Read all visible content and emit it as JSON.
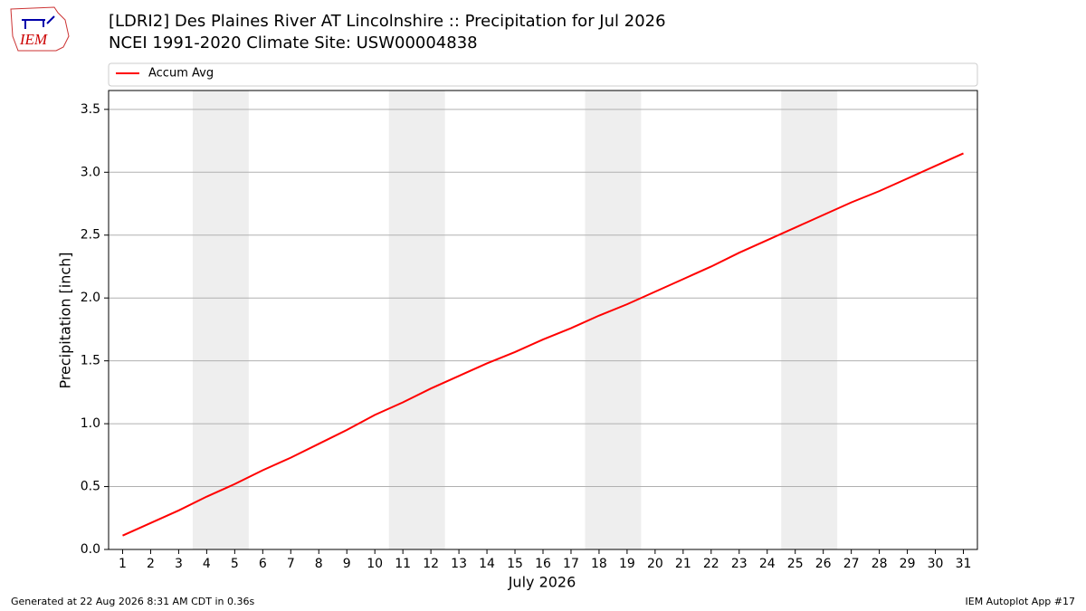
{
  "logo": "IEM",
  "footer_left": "Generated at 22 Aug 2026 8:31 AM CDT in 0.36s",
  "footer_right": "IEM Autoplot App #17",
  "chart_data": {
    "type": "line",
    "title": "[LDRI2] Des Plaines River  AT Lincolnshire :: Precipitation for Jul 2026",
    "subtitle": "NCEI 1991-2020 Climate Site: USW00004838",
    "xlabel": "July 2026",
    "ylabel": "Precipitation [inch]",
    "x": [
      1,
      2,
      3,
      4,
      5,
      6,
      7,
      8,
      9,
      10,
      11,
      12,
      13,
      14,
      15,
      16,
      17,
      18,
      19,
      20,
      21,
      22,
      23,
      24,
      25,
      26,
      27,
      28,
      29,
      30,
      31
    ],
    "series": [
      {
        "name": "Accum Avg",
        "color": "#ff0000",
        "values": [
          0.11,
          0.21,
          0.31,
          0.42,
          0.52,
          0.63,
          0.73,
          0.84,
          0.95,
          1.07,
          1.17,
          1.28,
          1.38,
          1.48,
          1.57,
          1.67,
          1.76,
          1.86,
          1.95,
          2.05,
          2.15,
          2.25,
          2.36,
          2.46,
          2.56,
          2.66,
          2.76,
          2.85,
          2.95,
          3.05,
          3.15
        ]
      }
    ],
    "shaded_spans": [
      [
        3.5,
        5.5
      ],
      [
        10.5,
        12.5
      ],
      [
        17.5,
        19.5
      ],
      [
        24.5,
        26.5
      ]
    ],
    "shade_color": "#eeeeee",
    "xlim": [
      0.5,
      31.5
    ],
    "ylim": [
      0,
      3.65
    ],
    "xticks": [
      1,
      2,
      3,
      4,
      5,
      6,
      7,
      8,
      9,
      10,
      11,
      12,
      13,
      14,
      15,
      16,
      17,
      18,
      19,
      20,
      21,
      22,
      23,
      24,
      25,
      26,
      27,
      28,
      29,
      30,
      31
    ],
    "yticks": [
      {
        "value": 0,
        "label": "0.0"
      },
      0.5,
      {
        "value": 1,
        "label": "1.0"
      },
      1.5,
      {
        "value": 2,
        "label": "2.0"
      },
      2.5,
      {
        "value": 3,
        "label": "3.0"
      },
      3.5
    ],
    "grid": true,
    "legend": "top"
  }
}
